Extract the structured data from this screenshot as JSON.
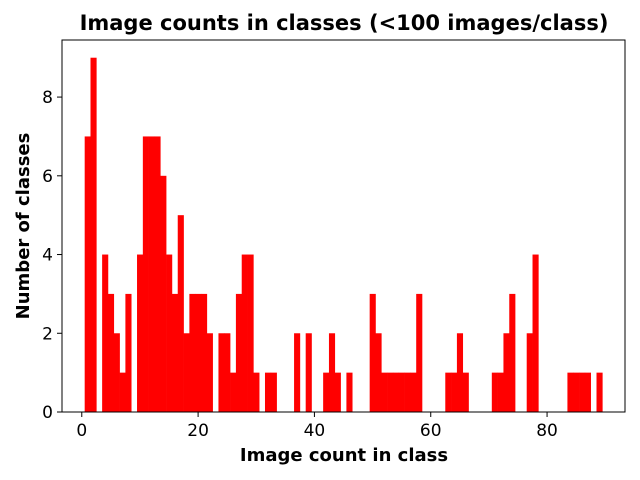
{
  "chart_data": {
    "type": "bar",
    "title": "Image counts in classes (<100 images/class)",
    "xlabel": "Image count in class",
    "ylabel": "Number of classes",
    "xlim": [
      -3.4,
      93.4
    ],
    "ylim": [
      0,
      9.45
    ],
    "xticks": [
      0,
      20,
      40,
      60,
      80
    ],
    "yticks": [
      0,
      2,
      4,
      6,
      8
    ],
    "bar_color": "#ff0000",
    "grid": false,
    "x": [
      1,
      2,
      4,
      5,
      6,
      7,
      8,
      10,
      11,
      12,
      13,
      14,
      15,
      16,
      17,
      18,
      19,
      20,
      21,
      22,
      24,
      25,
      26,
      27,
      28,
      29,
      30,
      32,
      33,
      37,
      39,
      42,
      43,
      44,
      46,
      50,
      51,
      52,
      53,
      54,
      55,
      56,
      57,
      58,
      63,
      64,
      65,
      66,
      71,
      72,
      73,
      74,
      77,
      78,
      84,
      85,
      86,
      87,
      89
    ],
    "values": [
      7,
      9,
      4,
      3,
      2,
      1,
      3,
      4,
      7,
      7,
      7,
      6,
      4,
      3,
      5,
      2,
      3,
      3,
      3,
      2,
      2,
      2,
      1,
      3,
      4,
      4,
      1,
      1,
      1,
      2,
      2,
      1,
      2,
      1,
      1,
      3,
      2,
      1,
      1,
      1,
      1,
      1,
      1,
      3,
      1,
      1,
      2,
      1,
      1,
      1,
      2,
      3,
      2,
      4,
      1,
      1,
      1,
      1,
      1
    ]
  }
}
